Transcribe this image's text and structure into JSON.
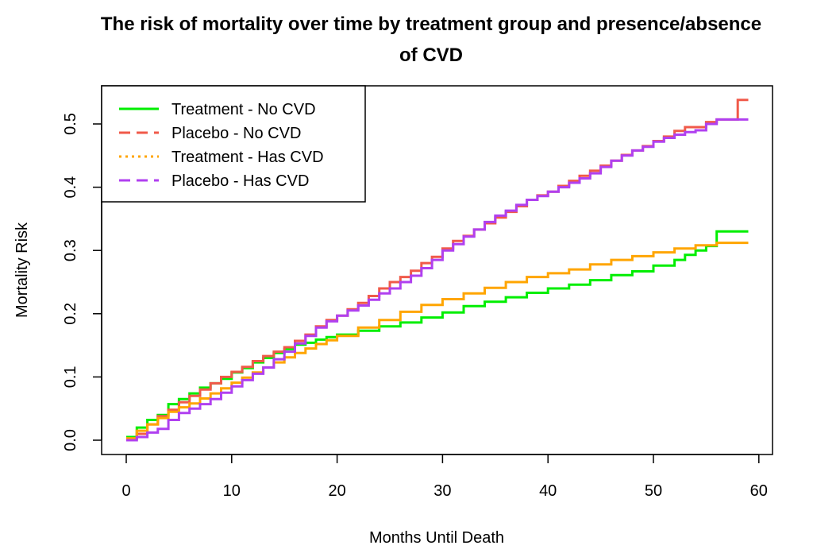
{
  "chart_data": {
    "type": "line",
    "title_lines": [
      "The risk of mortality over time by treatment group and presence/absence",
      "of CVD"
    ],
    "xlabel": "Months Until Death",
    "ylabel": "Mortality Risk",
    "xlim": [
      0,
      59
    ],
    "ylim": [
      0,
      0.54
    ],
    "x_ticks": [
      0,
      10,
      20,
      30,
      40,
      50,
      60
    ],
    "x_tick_labels": [
      "0",
      "10",
      "20",
      "30",
      "40",
      "50",
      "60"
    ],
    "y_ticks": [
      0.0,
      0.1,
      0.2,
      0.3,
      0.4,
      0.5
    ],
    "y_tick_labels": [
      "0.0",
      "0.1",
      "0.2",
      "0.3",
      "0.4",
      "0.5"
    ],
    "grid": false,
    "legend_position": "top-left",
    "series": [
      {
        "name": "Treatment - No CVD",
        "color": "#00ee00",
        "line_style": "solid",
        "step": true,
        "x": [
          0,
          1,
          2,
          3,
          4,
          5,
          6,
          7,
          8,
          9,
          10,
          11,
          12,
          13,
          14,
          15,
          16,
          17,
          18,
          19,
          20,
          22,
          24,
          26,
          28,
          30,
          32,
          34,
          36,
          38,
          40,
          42,
          44,
          46,
          48,
          50,
          52,
          53,
          54,
          55,
          56,
          59
        ],
        "y": [
          0.005,
          0.02,
          0.032,
          0.04,
          0.057,
          0.065,
          0.074,
          0.083,
          0.09,
          0.097,
          0.107,
          0.114,
          0.123,
          0.13,
          0.138,
          0.144,
          0.151,
          0.154,
          0.159,
          0.163,
          0.167,
          0.173,
          0.18,
          0.186,
          0.194,
          0.202,
          0.212,
          0.219,
          0.226,
          0.233,
          0.24,
          0.246,
          0.253,
          0.261,
          0.267,
          0.276,
          0.285,
          0.293,
          0.3,
          0.307,
          0.33,
          0.33
        ]
      },
      {
        "name": "Placebo - No CVD",
        "color": "#f05a4a",
        "line_style": "dashed",
        "step": true,
        "x": [
          0,
          1,
          2,
          3,
          4,
          5,
          6,
          7,
          8,
          9,
          10,
          11,
          12,
          13,
          14,
          15,
          16,
          17,
          18,
          19,
          20,
          21,
          22,
          23,
          24,
          25,
          26,
          27,
          28,
          29,
          30,
          31,
          32,
          33,
          34,
          35,
          36,
          37,
          38,
          39,
          40,
          41,
          42,
          43,
          44,
          45,
          46,
          47,
          48,
          49,
          50,
          51,
          52,
          53,
          54,
          55,
          56,
          57,
          58,
          59
        ],
        "y": [
          0.002,
          0.01,
          0.025,
          0.038,
          0.048,
          0.06,
          0.07,
          0.08,
          0.09,
          0.1,
          0.108,
          0.116,
          0.125,
          0.133,
          0.14,
          0.147,
          0.157,
          0.167,
          0.18,
          0.19,
          0.197,
          0.207,
          0.217,
          0.228,
          0.24,
          0.25,
          0.258,
          0.268,
          0.28,
          0.29,
          0.303,
          0.315,
          0.323,
          0.333,
          0.343,
          0.352,
          0.361,
          0.37,
          0.38,
          0.387,
          0.393,
          0.402,
          0.41,
          0.418,
          0.426,
          0.434,
          0.442,
          0.451,
          0.458,
          0.465,
          0.473,
          0.48,
          0.489,
          0.495,
          0.495,
          0.503,
          0.507,
          0.507,
          0.538,
          0.538
        ]
      },
      {
        "name": "Treatment - Has CVD",
        "color": "#ffa500",
        "line_style": "dotted",
        "step": true,
        "x": [
          0,
          1,
          2,
          3,
          4,
          5,
          6,
          7,
          8,
          9,
          10,
          11,
          12,
          13,
          14,
          15,
          16,
          17,
          18,
          19,
          20,
          22,
          24,
          26,
          28,
          30,
          32,
          34,
          36,
          38,
          40,
          42,
          44,
          46,
          48,
          50,
          52,
          54,
          56,
          59
        ],
        "y": [
          0.003,
          0.015,
          0.025,
          0.035,
          0.045,
          0.052,
          0.058,
          0.066,
          0.074,
          0.082,
          0.091,
          0.099,
          0.107,
          0.115,
          0.123,
          0.131,
          0.138,
          0.145,
          0.152,
          0.158,
          0.165,
          0.178,
          0.19,
          0.203,
          0.214,
          0.223,
          0.232,
          0.241,
          0.25,
          0.258,
          0.264,
          0.27,
          0.278,
          0.285,
          0.291,
          0.297,
          0.303,
          0.308,
          0.312,
          0.312
        ]
      },
      {
        "name": "Placebo - Has CVD",
        "color": "#b040f0",
        "line_style": "dashed",
        "step": true,
        "x": [
          0,
          1,
          2,
          3,
          4,
          5,
          6,
          7,
          8,
          9,
          10,
          11,
          12,
          13,
          14,
          15,
          16,
          17,
          18,
          19,
          20,
          21,
          22,
          23,
          24,
          25,
          26,
          27,
          28,
          29,
          30,
          31,
          32,
          33,
          34,
          35,
          36,
          37,
          38,
          39,
          40,
          41,
          42,
          43,
          44,
          45,
          46,
          47,
          48,
          49,
          50,
          51,
          52,
          53,
          54,
          55,
          56,
          59
        ],
        "y": [
          0.0,
          0.005,
          0.012,
          0.018,
          0.032,
          0.043,
          0.05,
          0.057,
          0.065,
          0.075,
          0.085,
          0.095,
          0.105,
          0.115,
          0.128,
          0.14,
          0.153,
          0.165,
          0.178,
          0.188,
          0.197,
          0.205,
          0.213,
          0.222,
          0.232,
          0.24,
          0.25,
          0.26,
          0.272,
          0.285,
          0.3,
          0.31,
          0.322,
          0.333,
          0.345,
          0.355,
          0.363,
          0.372,
          0.38,
          0.386,
          0.393,
          0.4,
          0.407,
          0.414,
          0.422,
          0.432,
          0.442,
          0.45,
          0.458,
          0.464,
          0.472,
          0.478,
          0.483,
          0.487,
          0.49,
          0.5,
          0.507,
          0.507
        ]
      }
    ]
  }
}
